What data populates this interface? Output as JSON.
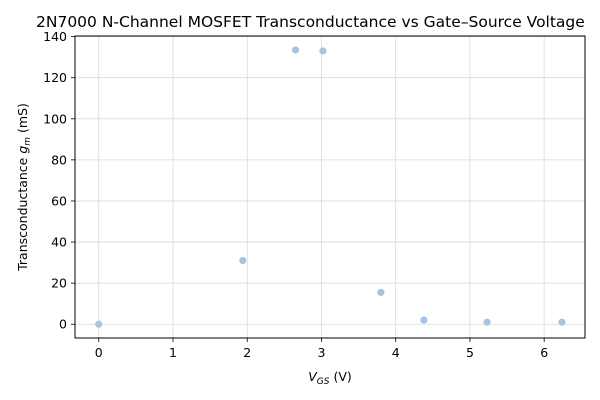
{
  "chart_data": {
    "type": "scatter",
    "title": "2N7000 N-Channel MOSFET Transconductance vs Gate–Source Voltage",
    "xlabel_main": "V",
    "xlabel_sub": "GS",
    "xlabel_unit": " (V)",
    "ylabel_main": "Transconductance ",
    "ylabel_sym": "g",
    "ylabel_sub": "m",
    "ylabel_unit": " (mS)",
    "xlim": [
      -0.32,
      6.55
    ],
    "ylim": [
      -6.7,
      140.3
    ],
    "xticks": [
      0,
      1,
      2,
      3,
      4,
      5,
      6
    ],
    "xtick_labels": [
      "0",
      "1",
      "2",
      "3",
      "4",
      "5",
      "6"
    ],
    "yticks": [
      0,
      20,
      40,
      60,
      80,
      100,
      120,
      140
    ],
    "ytick_labels": [
      "0",
      "20",
      "40",
      "60",
      "80",
      "100",
      "120",
      "140"
    ],
    "grid": true,
    "marker_color": "#a7c4e5",
    "points": [
      {
        "x": 0.0,
        "y": 0.0
      },
      {
        "x": 1.94,
        "y": 31.0
      },
      {
        "x": 2.65,
        "y": 133.5
      },
      {
        "x": 3.02,
        "y": 133.0
      },
      {
        "x": 3.8,
        "y": 15.5
      },
      {
        "x": 4.38,
        "y": 2.0
      },
      {
        "x": 5.23,
        "y": 1.0
      },
      {
        "x": 6.24,
        "y": 1.0
      }
    ]
  }
}
